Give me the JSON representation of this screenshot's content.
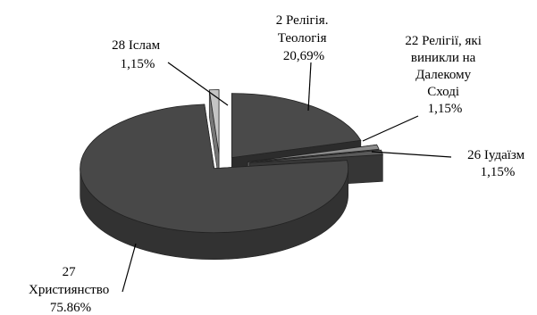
{
  "chart_data": {
    "type": "pie",
    "style": "3d-exploded",
    "title": "",
    "slices": [
      {
        "name": "2 Релігія. Теологія",
        "value": 20.69,
        "label": [
          "2 Релігія.",
          "Теологія",
          "20,69%"
        ],
        "color": "#4a4a4a"
      },
      {
        "name": "22 Релігії, які виникли на Далекому Сході",
        "value": 1.15,
        "label": [
          "22 Релігії, які",
          "виникли на",
          "Далекому",
          "Сході",
          "1,15%"
        ],
        "color": "#8c8c8c"
      },
      {
        "name": "26 Іудаїзм",
        "value": 1.15,
        "label": [
          "26 Іудаїзм",
          "1,15%"
        ],
        "color": "#5a5a5a"
      },
      {
        "name": "27 Християнство",
        "value": 75.86,
        "label": [
          "27",
          "Християнство",
          "75.86%"
        ],
        "color": "#484848"
      },
      {
        "name": "28 Іслам",
        "value": 1.15,
        "label": [
          "28 Іслам",
          "1,15%"
        ],
        "color": "#c4c4c4"
      }
    ]
  }
}
